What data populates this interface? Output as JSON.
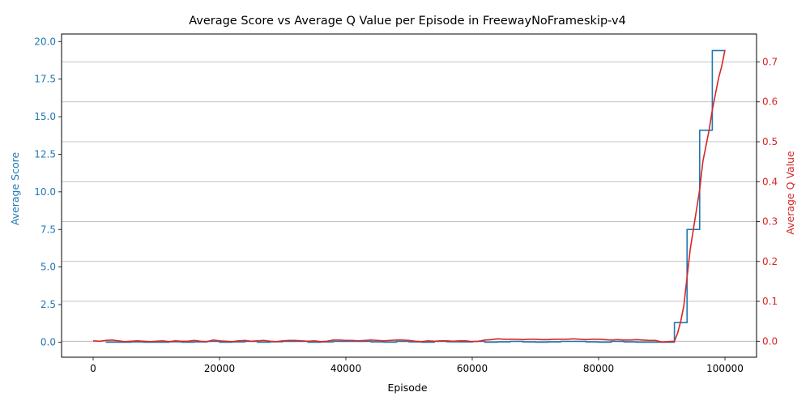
{
  "chart_data": {
    "type": "line",
    "title": "Average Score vs Average Q Value per Episode in FreewayNoFrameskip-v4",
    "xlabel": "Episode",
    "x_ticks": [
      0,
      20000,
      40000,
      60000,
      80000,
      100000
    ],
    "x_tick_labels": [
      "0",
      "20000",
      "40000",
      "60000",
      "80000",
      "100000"
    ],
    "xlim": [
      -5000,
      105000
    ],
    "grid": "horizontal lines from right axis ticks",
    "legend": "none",
    "y_left": {
      "label": "Average Score",
      "color": "#1f77b4",
      "lim": [
        -1.0,
        20.5
      ],
      "ticks": [
        0.0,
        2.5,
        5.0,
        7.5,
        10.0,
        12.5,
        15.0,
        17.5,
        20.0
      ],
      "tick_labels": [
        "0.0",
        "2.5",
        "5.0",
        "7.5",
        "10.0",
        "12.5",
        "15.0",
        "17.5",
        "20.0"
      ]
    },
    "y_right": {
      "label": "Average Q Value",
      "color": "#d62728",
      "lim": [
        -0.04,
        0.77
      ],
      "ticks": [
        0.0,
        0.1,
        0.2,
        0.3,
        0.4,
        0.5,
        0.6,
        0.7
      ],
      "tick_labels": [
        "0.0",
        "0.1",
        "0.2",
        "0.3",
        "0.4",
        "0.5",
        "0.6",
        "0.7"
      ]
    },
    "series": [
      {
        "axis": "left",
        "color": "#1f77b4",
        "step": true,
        "x": [
          2000,
          4000,
          6000,
          8000,
          10000,
          12000,
          14000,
          16000,
          18000,
          20000,
          22000,
          24000,
          26000,
          28000,
          30000,
          32000,
          34000,
          36000,
          38000,
          40000,
          42000,
          44000,
          46000,
          48000,
          50000,
          52000,
          54000,
          56000,
          58000,
          60000,
          62000,
          64000,
          66000,
          68000,
          70000,
          72000,
          74000,
          76000,
          78000,
          80000,
          82000,
          84000,
          86000,
          88000,
          90000,
          92000,
          94000,
          96000,
          98000,
          100000
        ],
        "values": [
          0.0,
          0.0,
          0.02,
          0.0,
          0.0,
          0.03,
          0.0,
          0.02,
          0.05,
          0.0,
          0.02,
          0.05,
          0.0,
          0.03,
          0.05,
          0.05,
          0.0,
          0.02,
          0.05,
          0.05,
          0.05,
          0.02,
          0.0,
          0.05,
          0.02,
          0.0,
          0.05,
          0.03,
          0.02,
          0.05,
          0.0,
          0.02,
          0.05,
          0.02,
          0.0,
          0.02,
          0.05,
          0.05,
          0.02,
          0.0,
          0.05,
          0.02,
          0.0,
          0.0,
          0.0,
          1.3,
          7.5,
          14.1,
          19.4,
          19.4
        ]
      },
      {
        "axis": "right",
        "color": "#d62728",
        "step": false,
        "x": [
          0,
          1000,
          2000,
          3000,
          4000,
          5000,
          6000,
          7000,
          8000,
          9000,
          10000,
          11000,
          12000,
          13000,
          14000,
          15000,
          16000,
          17000,
          18000,
          19000,
          20000,
          21000,
          22000,
          23000,
          24000,
          25000,
          26000,
          27000,
          28000,
          29000,
          30000,
          31000,
          32000,
          33000,
          34000,
          35000,
          36000,
          37000,
          38000,
          39000,
          40000,
          41000,
          42000,
          43000,
          44000,
          45000,
          46000,
          47000,
          48000,
          49000,
          50000,
          51000,
          52000,
          53000,
          54000,
          55000,
          56000,
          57000,
          58000,
          59000,
          60000,
          61000,
          62000,
          63000,
          64000,
          65000,
          66000,
          67000,
          68000,
          69000,
          70000,
          71000,
          72000,
          73000,
          74000,
          75000,
          76000,
          77000,
          78000,
          79000,
          80000,
          81000,
          82000,
          83000,
          84000,
          85000,
          86000,
          87000,
          88000,
          89000,
          90000,
          91000,
          92000,
          92500,
          93000,
          93500,
          94000,
          94500,
          95000,
          95500,
          96000,
          96500,
          97000,
          97500,
          98000,
          98500,
          99000,
          99500,
          100000
        ],
        "values": [
          0.001,
          0.0,
          0.002,
          0.003,
          0.001,
          -0.001,
          0.0,
          0.001,
          0.0,
          -0.001,
          0.0,
          0.001,
          -0.001,
          0.001,
          0.0,
          0.0,
          0.002,
          0.0,
          -0.001,
          0.003,
          0.001,
          0.0,
          -0.001,
          0.001,
          0.002,
          0.0,
          0.001,
          0.002,
          0.0,
          -0.001,
          0.001,
          0.002,
          0.002,
          0.001,
          0.0,
          0.001,
          -0.001,
          0.0,
          0.003,
          0.003,
          0.002,
          0.002,
          0.001,
          0.002,
          0.003,
          0.002,
          0.001,
          0.002,
          0.003,
          0.003,
          0.002,
          0.0,
          -0.001,
          0.001,
          0.0,
          0.001,
          0.001,
          0.0,
          0.001,
          0.001,
          -0.001,
          0.0,
          0.003,
          0.004,
          0.006,
          0.005,
          0.005,
          0.005,
          0.004,
          0.005,
          0.005,
          0.004,
          0.004,
          0.005,
          0.005,
          0.005,
          0.006,
          0.005,
          0.004,
          0.005,
          0.005,
          0.004,
          0.003,
          0.004,
          0.003,
          0.003,
          0.004,
          0.003,
          0.002,
          0.002,
          -0.002,
          -0.001,
          0.0,
          0.02,
          0.05,
          0.09,
          0.16,
          0.23,
          0.28,
          0.33,
          0.38,
          0.45,
          0.49,
          0.53,
          0.58,
          0.62,
          0.66,
          0.69,
          0.73
        ]
      }
    ]
  }
}
